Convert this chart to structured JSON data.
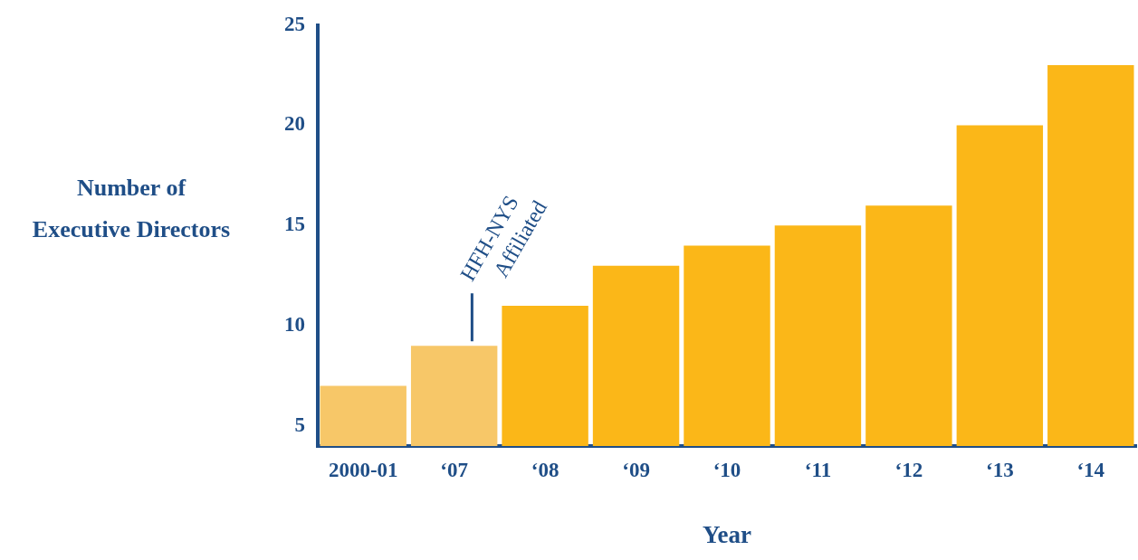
{
  "chart_data": {
    "type": "bar",
    "xlabel": "Year",
    "ylabel": "Number of Executive Directors",
    "categories": [
      "2000-01",
      "‘07",
      "‘08",
      "‘09",
      "‘10",
      "‘11",
      "‘12",
      "‘13",
      "‘14"
    ],
    "values": [
      7,
      9,
      11,
      13,
      14,
      15,
      16,
      20,
      23
    ],
    "colors": [
      "#f7c768",
      "#f7c768",
      "#fbb718",
      "#fbb718",
      "#fbb718",
      "#fbb718",
      "#fbb718",
      "#fbb718",
      "#fbb718"
    ],
    "ylim": [
      4,
      25
    ],
    "yticks": [
      5,
      10,
      15,
      20,
      25
    ],
    "grid": false,
    "legend": false,
    "annotations": [
      "HFH-NYS Affiliated"
    ]
  }
}
